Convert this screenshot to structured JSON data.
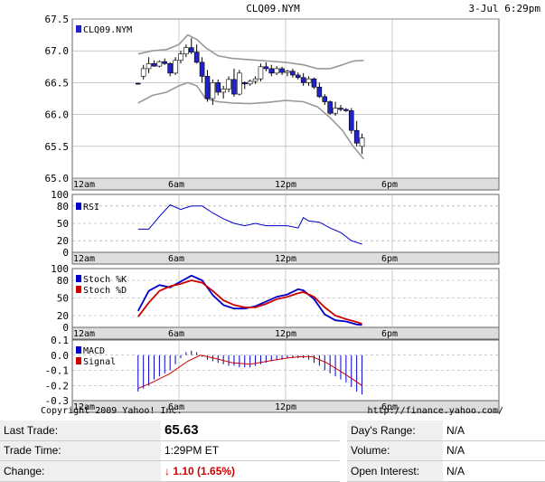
{
  "chart_data": {
    "type": "candlestick",
    "symbol": "CLQ09.NYM",
    "date_label": "3-Jul 6:29pm",
    "x_ticks": [
      "12am",
      "6am",
      "12pm",
      "6pm"
    ],
    "price": {
      "legend": "CLQ09.NYM",
      "ylim": [
        65.0,
        67.5
      ],
      "yticks": [
        "67.5",
        "67.0",
        "66.5",
        "66.0",
        "65.5",
        "65.0"
      ],
      "candles": [
        {
          "x": 3.7,
          "o": 66.49,
          "h": 66.5,
          "l": 66.47,
          "c": 66.48
        },
        {
          "x": 4.0,
          "o": 66.6,
          "h": 66.78,
          "l": 66.55,
          "c": 66.72
        },
        {
          "x": 4.3,
          "o": 66.72,
          "h": 66.9,
          "l": 66.65,
          "c": 66.8
        },
        {
          "x": 4.6,
          "o": 66.8,
          "h": 66.85,
          "l": 66.75,
          "c": 66.76
        },
        {
          "x": 4.9,
          "o": 66.76,
          "h": 66.85,
          "l": 66.74,
          "c": 66.83
        },
        {
          "x": 5.2,
          "o": 66.83,
          "h": 66.88,
          "l": 66.78,
          "c": 66.8
        },
        {
          "x": 5.5,
          "o": 66.8,
          "h": 66.82,
          "l": 66.6,
          "c": 66.65
        },
        {
          "x": 5.8,
          "o": 66.65,
          "h": 66.9,
          "l": 66.62,
          "c": 66.85
        },
        {
          "x": 6.1,
          "o": 66.85,
          "h": 67.0,
          "l": 66.8,
          "c": 66.95
        },
        {
          "x": 6.4,
          "o": 66.95,
          "h": 67.1,
          "l": 66.9,
          "c": 67.05
        },
        {
          "x": 6.7,
          "o": 67.05,
          "h": 67.2,
          "l": 66.95,
          "c": 66.98
        },
        {
          "x": 7.0,
          "o": 66.98,
          "h": 67.1,
          "l": 66.8,
          "c": 66.82
        },
        {
          "x": 7.3,
          "o": 66.82,
          "h": 66.9,
          "l": 66.5,
          "c": 66.6
        },
        {
          "x": 7.6,
          "o": 66.6,
          "h": 66.7,
          "l": 66.2,
          "c": 66.25
        },
        {
          "x": 7.9,
          "o": 66.25,
          "h": 66.55,
          "l": 66.15,
          "c": 66.5
        },
        {
          "x": 8.2,
          "o": 66.5,
          "h": 66.55,
          "l": 66.3,
          "c": 66.35
        },
        {
          "x": 8.5,
          "o": 66.35,
          "h": 66.45,
          "l": 66.25,
          "c": 66.4
        },
        {
          "x": 8.8,
          "o": 66.4,
          "h": 66.6,
          "l": 66.35,
          "c": 66.55
        },
        {
          "x": 9.1,
          "o": 66.55,
          "h": 66.72,
          "l": 66.28,
          "c": 66.32
        },
        {
          "x": 9.4,
          "o": 66.32,
          "h": 66.7,
          "l": 66.3,
          "c": 66.65
        },
        {
          "x": 9.7,
          "o": 66.5,
          "h": 66.52,
          "l": 66.4,
          "c": 66.48
        },
        {
          "x": 10.0,
          "o": 66.48,
          "h": 66.55,
          "l": 66.45,
          "c": 66.52
        },
        {
          "x": 10.3,
          "o": 66.52,
          "h": 66.6,
          "l": 66.48,
          "c": 66.56
        },
        {
          "x": 10.6,
          "o": 66.56,
          "h": 66.8,
          "l": 66.52,
          "c": 66.75
        },
        {
          "x": 10.9,
          "o": 66.75,
          "h": 66.82,
          "l": 66.68,
          "c": 66.72
        },
        {
          "x": 11.2,
          "o": 66.72,
          "h": 66.78,
          "l": 66.6,
          "c": 66.65
        },
        {
          "x": 11.5,
          "o": 66.65,
          "h": 66.76,
          "l": 66.62,
          "c": 66.72
        },
        {
          "x": 11.8,
          "o": 66.72,
          "h": 66.75,
          "l": 66.62,
          "c": 66.66
        },
        {
          "x": 12.1,
          "o": 66.66,
          "h": 66.7,
          "l": 66.6,
          "c": 66.68
        },
        {
          "x": 12.4,
          "o": 66.68,
          "h": 66.72,
          "l": 66.58,
          "c": 66.62
        },
        {
          "x": 12.7,
          "o": 66.62,
          "h": 66.66,
          "l": 66.55,
          "c": 66.58
        },
        {
          "x": 13.0,
          "o": 66.58,
          "h": 66.65,
          "l": 66.45,
          "c": 66.5
        },
        {
          "x": 13.3,
          "o": 66.5,
          "h": 66.6,
          "l": 66.45,
          "c": 66.56
        },
        {
          "x": 13.6,
          "o": 66.56,
          "h": 66.58,
          "l": 66.4,
          "c": 66.43
        },
        {
          "x": 13.9,
          "o": 66.43,
          "h": 66.5,
          "l": 66.26,
          "c": 66.28
        },
        {
          "x": 14.2,
          "o": 66.28,
          "h": 66.32,
          "l": 66.15,
          "c": 66.2
        },
        {
          "x": 14.5,
          "o": 66.2,
          "h": 66.22,
          "l": 66.0,
          "c": 66.02
        },
        {
          "x": 14.8,
          "o": 66.02,
          "h": 66.2,
          "l": 65.98,
          "c": 66.1
        },
        {
          "x": 15.1,
          "o": 66.1,
          "h": 66.15,
          "l": 66.05,
          "c": 66.08
        },
        {
          "x": 15.4,
          "o": 66.08,
          "h": 66.1,
          "l": 66.04,
          "c": 66.06
        },
        {
          "x": 15.7,
          "o": 66.06,
          "h": 66.1,
          "l": 65.7,
          "c": 65.75
        },
        {
          "x": 16.0,
          "o": 65.75,
          "h": 65.9,
          "l": 65.5,
          "c": 65.55
        },
        {
          "x": 16.3,
          "o": 65.5,
          "h": 65.7,
          "l": 65.38,
          "c": 65.63
        }
      ],
      "band_upper": [
        [
          3.7,
          66.95
        ],
        [
          4.5,
          67.0
        ],
        [
          5.3,
          67.02
        ],
        [
          6.0,
          67.1
        ],
        [
          6.5,
          67.25
        ],
        [
          7.0,
          67.18
        ],
        [
          7.5,
          67.05
        ],
        [
          8.2,
          66.92
        ],
        [
          9.0,
          66.88
        ],
        [
          10.0,
          66.86
        ],
        [
          11.0,
          66.84
        ],
        [
          12.0,
          66.82
        ],
        [
          13.0,
          66.78
        ],
        [
          13.8,
          66.72
        ],
        [
          14.5,
          66.72
        ],
        [
          15.2,
          66.78
        ],
        [
          15.8,
          66.84
        ],
        [
          16.4,
          66.85
        ]
      ],
      "band_lower": [
        [
          3.7,
          66.18
        ],
        [
          4.5,
          66.3
        ],
        [
          5.3,
          66.35
        ],
        [
          6.0,
          66.45
        ],
        [
          6.5,
          66.5
        ],
        [
          7.0,
          66.45
        ],
        [
          7.5,
          66.25
        ],
        [
          8.2,
          66.2
        ],
        [
          9.0,
          66.18
        ],
        [
          10.0,
          66.17
        ],
        [
          11.0,
          66.19
        ],
        [
          12.0,
          66.22
        ],
        [
          13.0,
          66.2
        ],
        [
          13.8,
          66.12
        ],
        [
          14.5,
          65.95
        ],
        [
          15.2,
          65.75
        ],
        [
          15.8,
          65.5
        ],
        [
          16.4,
          65.3
        ]
      ]
    },
    "rsi": {
      "legend": "RSI",
      "ylim": [
        0,
        100
      ],
      "yticks": [
        "100",
        "80",
        "50",
        "20",
        "0"
      ],
      "values": [
        [
          3.7,
          40
        ],
        [
          4.3,
          40
        ],
        [
          4.9,
          62
        ],
        [
          5.5,
          82
        ],
        [
          6.1,
          74
        ],
        [
          6.7,
          80
        ],
        [
          7.3,
          80
        ],
        [
          7.9,
          68
        ],
        [
          8.5,
          58
        ],
        [
          9.1,
          50
        ],
        [
          9.7,
          46
        ],
        [
          10.3,
          50
        ],
        [
          10.9,
          46
        ],
        [
          11.5,
          46
        ],
        [
          12.1,
          46
        ],
        [
          12.7,
          42
        ],
        [
          13.0,
          60
        ],
        [
          13.3,
          54
        ],
        [
          13.9,
          52
        ],
        [
          14.5,
          42
        ],
        [
          15.1,
          34
        ],
        [
          15.7,
          20
        ],
        [
          16.3,
          14
        ]
      ]
    },
    "stoch": {
      "yticks": [
        "100",
        "80",
        "50",
        "20",
        "0"
      ],
      "ylim": [
        0,
        100
      ],
      "series": [
        {
          "name": "Stoch %K",
          "color": "#0000cc",
          "values": [
            [
              3.7,
              28
            ],
            [
              4.3,
              62
            ],
            [
              4.9,
              72
            ],
            [
              5.5,
              68
            ],
            [
              6.1,
              78
            ],
            [
              6.7,
              88
            ],
            [
              7.3,
              80
            ],
            [
              7.9,
              55
            ],
            [
              8.5,
              38
            ],
            [
              9.1,
              32
            ],
            [
              9.7,
              32
            ],
            [
              10.3,
              36
            ],
            [
              10.9,
              44
            ],
            [
              11.5,
              52
            ],
            [
              12.1,
              56
            ],
            [
              12.7,
              65
            ],
            [
              13.0,
              63
            ],
            [
              13.6,
              48
            ],
            [
              14.2,
              22
            ],
            [
              14.8,
              12
            ],
            [
              15.4,
              10
            ],
            [
              16.0,
              5
            ],
            [
              16.3,
              4
            ]
          ]
        },
        {
          "name": "Stoch %D",
          "color": "#cc0000",
          "values": [
            [
              3.7,
              18
            ],
            [
              4.3,
              42
            ],
            [
              4.9,
              62
            ],
            [
              5.5,
              70
            ],
            [
              6.1,
              74
            ],
            [
              6.7,
              80
            ],
            [
              7.3,
              76
            ],
            [
              7.9,
              62
            ],
            [
              8.5,
              46
            ],
            [
              9.1,
              38
            ],
            [
              9.7,
              34
            ],
            [
              10.3,
              34
            ],
            [
              10.9,
              40
            ],
            [
              11.5,
              48
            ],
            [
              12.1,
              52
            ],
            [
              12.7,
              58
            ],
            [
              13.0,
              60
            ],
            [
              13.6,
              52
            ],
            [
              14.2,
              34
            ],
            [
              14.8,
              20
            ],
            [
              15.4,
              14
            ],
            [
              16.0,
              9
            ],
            [
              16.3,
              6
            ]
          ]
        }
      ]
    },
    "macd": {
      "ylim": [
        -0.3,
        0.1
      ],
      "yticks": [
        "0.1",
        "0.0",
        "-0.1",
        "-0.2",
        "-0.3"
      ],
      "series": [
        {
          "name": "MACD",
          "color": "#0000cc",
          "values": [
            [
              3.7,
              -0.25
            ],
            [
              16.3,
              -0.26
            ]
          ]
        },
        {
          "name": "Signal",
          "color": "#cc0000",
          "values": [
            [
              3.7,
              -0.22
            ],
            [
              4.5,
              -0.18
            ],
            [
              5.5,
              -0.12
            ],
            [
              6.5,
              -0.04
            ],
            [
              7.2,
              0.0
            ],
            [
              8.0,
              -0.02
            ],
            [
              9.0,
              -0.05
            ],
            [
              10.0,
              -0.06
            ],
            [
              11.0,
              -0.04
            ],
            [
              12.0,
              -0.02
            ],
            [
              12.8,
              -0.01
            ],
            [
              13.5,
              -0.01
            ],
            [
              14.3,
              -0.05
            ],
            [
              15.0,
              -0.1
            ],
            [
              15.8,
              -0.16
            ],
            [
              16.3,
              -0.2
            ]
          ]
        }
      ],
      "histogram": [
        [
          3.7,
          -0.24
        ],
        [
          4.0,
          -0.22
        ],
        [
          4.3,
          -0.2
        ],
        [
          4.6,
          -0.16
        ],
        [
          4.9,
          -0.14
        ],
        [
          5.2,
          -0.12
        ],
        [
          5.5,
          -0.1
        ],
        [
          5.8,
          -0.06
        ],
        [
          6.1,
          -0.02
        ],
        [
          6.4,
          0.02
        ],
        [
          6.7,
          0.03
        ],
        [
          7.0,
          0.02
        ],
        [
          7.3,
          -0.01
        ],
        [
          7.6,
          -0.03
        ],
        [
          7.9,
          -0.04
        ],
        [
          8.2,
          -0.05
        ],
        [
          8.5,
          -0.06
        ],
        [
          8.8,
          -0.07
        ],
        [
          9.1,
          -0.07
        ],
        [
          9.4,
          -0.08
        ],
        [
          9.7,
          -0.08
        ],
        [
          10.0,
          -0.08
        ],
        [
          10.3,
          -0.07
        ],
        [
          10.6,
          -0.06
        ],
        [
          10.9,
          -0.05
        ],
        [
          11.2,
          -0.04
        ],
        [
          11.5,
          -0.03
        ],
        [
          11.8,
          -0.03
        ],
        [
          12.1,
          -0.02
        ],
        [
          12.4,
          -0.02
        ],
        [
          12.7,
          -0.02
        ],
        [
          13.0,
          -0.02
        ],
        [
          13.3,
          -0.03
        ],
        [
          13.6,
          -0.05
        ],
        [
          13.9,
          -0.07
        ],
        [
          14.2,
          -0.1
        ],
        [
          14.5,
          -0.12
        ],
        [
          14.8,
          -0.14
        ],
        [
          15.1,
          -0.16
        ],
        [
          15.4,
          -0.18
        ],
        [
          15.7,
          -0.21
        ],
        [
          16.0,
          -0.24
        ],
        [
          16.3,
          -0.26
        ]
      ]
    },
    "colors": {
      "up": "#ffffff",
      "down": "#2222cc",
      "band": "#999999",
      "grid": "#aaaaaa",
      "rsi": "#0000cc",
      "axis_bar": "#dddddd"
    },
    "copyright": "Copyright 2009 Yahoo! Inc.",
    "source_url": "http://finance.yahoo.com/"
  },
  "quote": {
    "last_trade_label": "Last Trade:",
    "last_trade_value": "65.63",
    "trade_time_label": "Trade Time:",
    "trade_time_value": "1:29PM ET",
    "change_label": "Change:",
    "change_arrow": "↓",
    "change_value": "1.10 (1.65%)",
    "days_range_label": "Day's Range:",
    "days_range_value": "N/A",
    "volume_label": "Volume:",
    "volume_value": "N/A",
    "open_interest_label": "Open Interest:",
    "open_interest_value": "N/A"
  }
}
